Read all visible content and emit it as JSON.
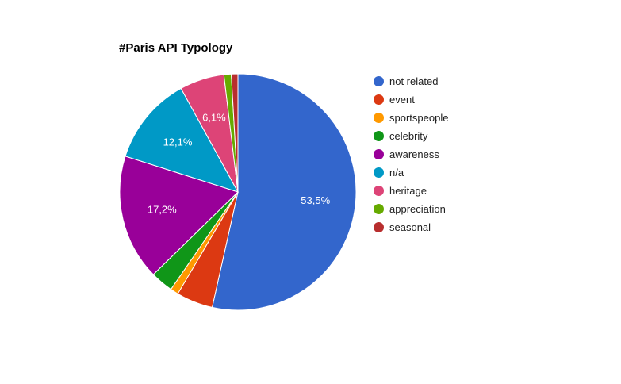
{
  "chart_data": {
    "type": "pie",
    "title": "#Paris API Typology",
    "categories": [
      "not related",
      "event",
      "sportspeople",
      "celebrity",
      "awareness",
      "n/a",
      "heritage",
      "appreciation",
      "seasonal"
    ],
    "values": [
      53.5,
      5.0,
      1.1,
      3.1,
      17.2,
      12.1,
      6.1,
      1.0,
      0.9
    ],
    "data_labels": [
      "53,5%",
      "",
      "",
      "",
      "17,2%",
      "12,1%",
      "6,1%",
      "",
      ""
    ],
    "colors": [
      "#3366cc",
      "#dc3912",
      "#ff9900",
      "#109618",
      "#990099",
      "#0099c6",
      "#dd4477",
      "#66aa00",
      "#b82e2e"
    ],
    "legend_position": "right"
  }
}
